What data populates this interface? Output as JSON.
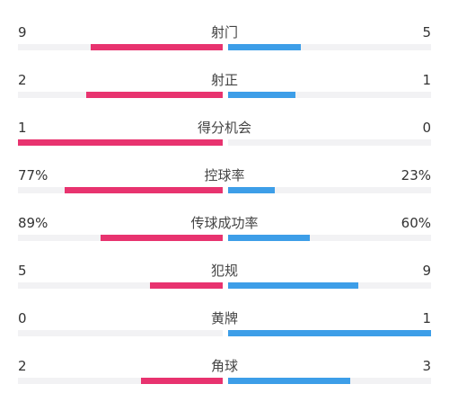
{
  "colors": {
    "home": "#e8336f",
    "away": "#3d9ee8",
    "track": "#f2f2f4"
  },
  "stats": [
    {
      "name": "射门",
      "left": "9",
      "right": "5",
      "left_ratio": 0.643,
      "right_ratio": 0.357
    },
    {
      "name": "射正",
      "left": "2",
      "right": "1",
      "left_ratio": 0.667,
      "right_ratio": 0.333
    },
    {
      "name": "得分机会",
      "left": "1",
      "right": "0",
      "left_ratio": 1.0,
      "right_ratio": 0.0
    },
    {
      "name": "控球率",
      "left": "77%",
      "right": "23%",
      "left_ratio": 0.77,
      "right_ratio": 0.23
    },
    {
      "name": "传球成功率",
      "left": "89%",
      "right": "60%",
      "left_ratio": 0.597,
      "right_ratio": 0.403
    },
    {
      "name": "犯规",
      "left": "5",
      "right": "9",
      "left_ratio": 0.357,
      "right_ratio": 0.643
    },
    {
      "name": "黄牌",
      "left": "0",
      "right": "1",
      "left_ratio": 0.0,
      "right_ratio": 1.0
    },
    {
      "name": "角球",
      "left": "2",
      "right": "3",
      "left_ratio": 0.4,
      "right_ratio": 0.6
    }
  ]
}
